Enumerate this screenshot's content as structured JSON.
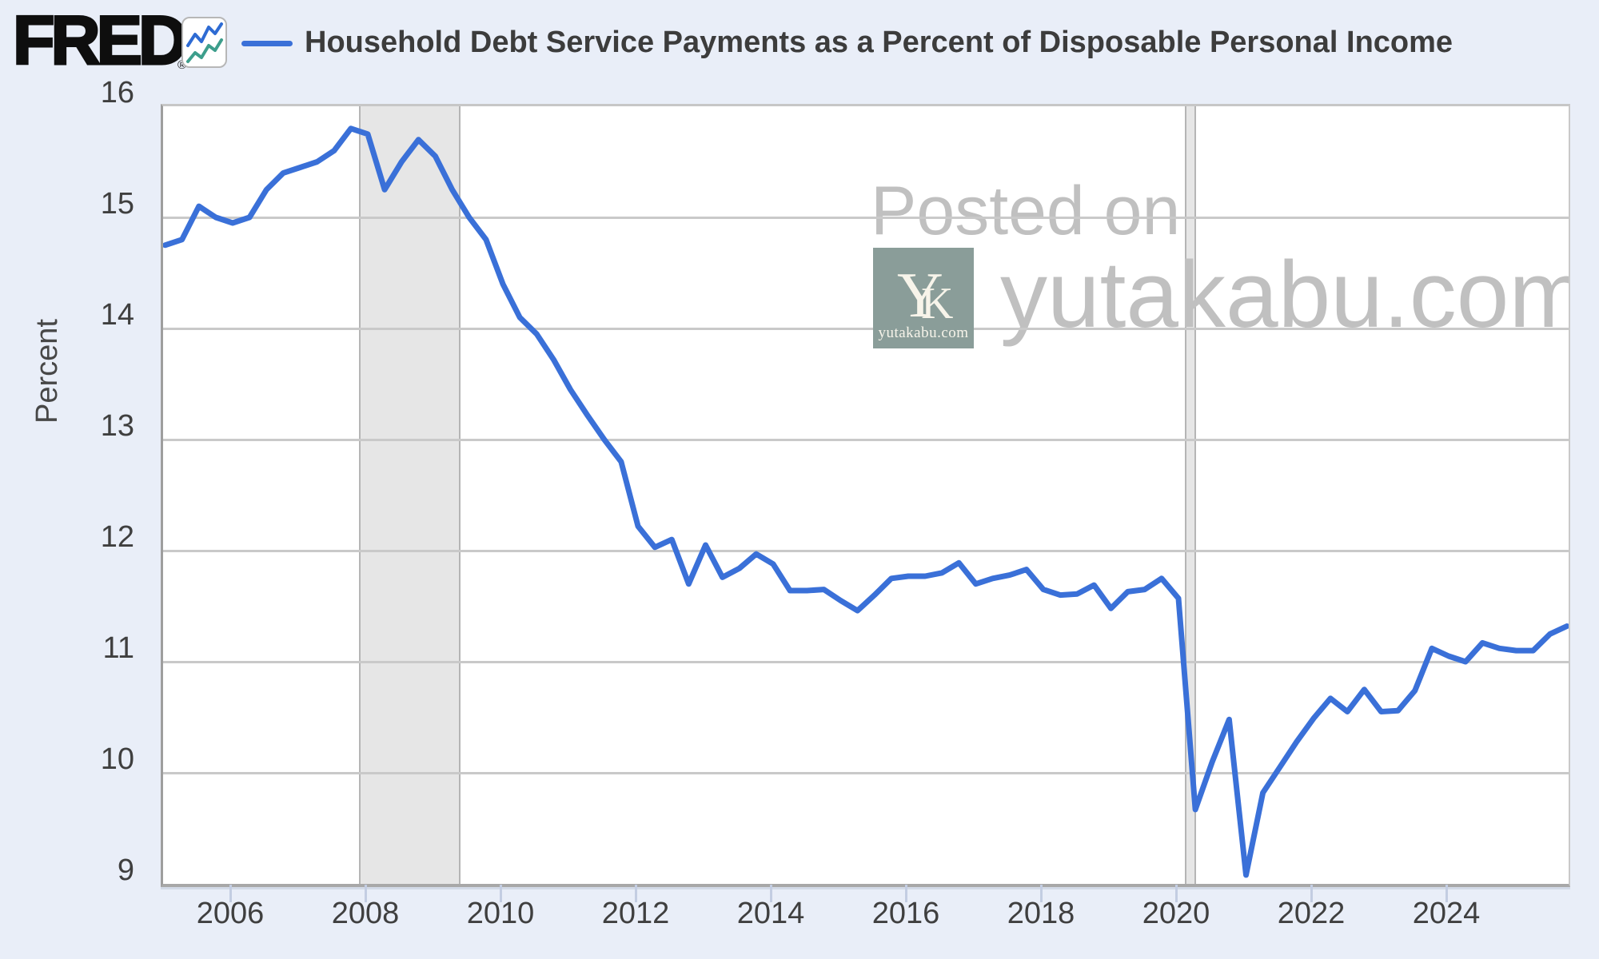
{
  "header": {
    "brand": "FRED",
    "registered_mark": "®",
    "logo_icon": "line-chart-icon",
    "legend_swatch": "blue-line-swatch",
    "title": "Household Debt Service Payments as a Percent of Disposable Personal Income"
  },
  "watermark": {
    "posted_on": "Posted on",
    "site": "yutakabu.com",
    "logo": {
      "monogram_y": "Y",
      "monogram_k": "K",
      "caption": "yutakabu.com"
    }
  },
  "colors": {
    "page_background": "#e9eef8",
    "plot_background": "#ffffff",
    "line": "#3a70d8",
    "gridline": "#c9c9c9",
    "recession_band": "#e6e6e6",
    "watermark_text": "#c0c0c0",
    "watermark_logo_background": "#8a9d99",
    "icon_blue": "#2e6bd3",
    "icon_teal": "#3d9e8c",
    "axis_text": "#3f3f3f"
  },
  "chart_data": {
    "type": "line",
    "title": "Household Debt Service Payments as a Percent of Disposable Personal Income",
    "xlabel": "",
    "ylabel": "Percent",
    "ylim": [
      9,
      16
    ],
    "yticks": [
      16,
      15,
      14,
      13,
      12,
      11,
      10,
      9
    ],
    "xticks": [
      2006,
      2008,
      2010,
      2012,
      2014,
      2016,
      2018,
      2020,
      2022,
      2024
    ],
    "xlim": [
      2005.0,
      2025.78
    ],
    "grid": "horizontal-only",
    "legend_position": "top-left",
    "frequency": "quarterly",
    "recession_bands": [
      [
        2007.87,
        2009.37
      ],
      [
        2020.1,
        2020.26
      ]
    ],
    "series": [
      {
        "name": "Household Debt Service Payments as a Percent of Disposable Personal Income",
        "color": "#3a70d8",
        "x": [
          2005.0,
          2005.25,
          2005.5,
          2005.75,
          2006.0,
          2006.25,
          2006.5,
          2006.75,
          2007.0,
          2007.25,
          2007.5,
          2007.75,
          2008.0,
          2008.25,
          2008.5,
          2008.75,
          2009.0,
          2009.25,
          2009.5,
          2009.75,
          2010.0,
          2010.25,
          2010.5,
          2010.75,
          2011.0,
          2011.25,
          2011.5,
          2011.75,
          2012.0,
          2012.25,
          2012.5,
          2012.75,
          2013.0,
          2013.25,
          2013.5,
          2013.75,
          2014.0,
          2014.25,
          2014.5,
          2014.75,
          2015.0,
          2015.25,
          2015.5,
          2015.75,
          2016.0,
          2016.25,
          2016.5,
          2016.75,
          2017.0,
          2017.25,
          2017.5,
          2017.75,
          2018.0,
          2018.25,
          2018.5,
          2018.75,
          2019.0,
          2019.25,
          2019.5,
          2019.75,
          2020.0,
          2020.25,
          2020.5,
          2020.75,
          2021.0,
          2021.25,
          2021.5,
          2021.75,
          2022.0,
          2022.25,
          2022.5,
          2022.75,
          2023.0,
          2023.25,
          2023.5,
          2023.75,
          2024.0,
          2024.25,
          2024.5,
          2024.75,
          2025.0,
          2025.25,
          2025.5,
          2025.75
        ],
        "values": [
          14.75,
          14.8,
          15.1,
          15.0,
          14.95,
          15.0,
          15.25,
          15.4,
          15.45,
          15.5,
          15.6,
          15.8,
          15.75,
          15.25,
          15.5,
          15.7,
          15.55,
          15.25,
          15.0,
          14.8,
          14.4,
          14.1,
          13.95,
          13.72,
          13.45,
          13.22,
          13.0,
          12.8,
          12.22,
          12.03,
          12.1,
          11.7,
          12.05,
          11.76,
          11.84,
          11.97,
          11.88,
          11.64,
          11.64,
          11.65,
          11.55,
          11.46,
          11.6,
          11.75,
          11.77,
          11.77,
          11.8,
          11.89,
          11.7,
          11.75,
          11.78,
          11.83,
          11.65,
          11.6,
          11.61,
          11.69,
          11.48,
          11.63,
          11.65,
          11.75,
          11.57,
          9.67,
          10.1,
          10.48,
          9.08,
          9.82,
          10.05,
          10.28,
          10.49,
          10.67,
          10.55,
          10.75,
          10.55,
          10.56,
          10.74,
          11.12,
          11.05,
          11.0,
          11.17,
          11.12,
          11.1,
          11.1,
          11.25,
          11.32
        ]
      }
    ]
  }
}
